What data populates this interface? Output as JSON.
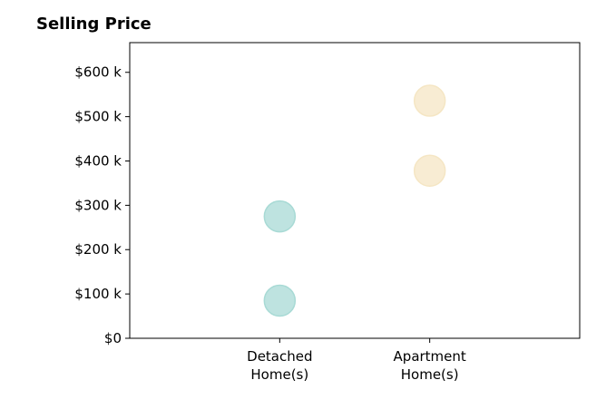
{
  "chart_data": {
    "type": "scatter",
    "title": "Selling Price",
    "categories": [
      "Detached\nHome(s)",
      "Apartment\nHome(s)"
    ],
    "series": [
      {
        "category": "Detached\nHome(s)",
        "values": [
          85,
          275
        ],
        "color": "#a8dad5"
      },
      {
        "category": "Apartment\nHome(s)",
        "values": [
          378,
          536
        ],
        "color": "#f5e6c4"
      }
    ],
    "yticks": [
      {
        "value": 0,
        "label": "$0"
      },
      {
        "value": 100,
        "label": "$100 k"
      },
      {
        "value": 200,
        "label": "$200 k"
      },
      {
        "value": 300,
        "label": "$300 k"
      },
      {
        "value": 400,
        "label": "$400 k"
      },
      {
        "value": 500,
        "label": "$500 k"
      },
      {
        "value": 600,
        "label": "$600 k"
      }
    ],
    "ylim": [
      0,
      667
    ],
    "xlim": [
      -1,
      2
    ],
    "grid": false,
    "xlabel": "",
    "ylabel": ""
  }
}
